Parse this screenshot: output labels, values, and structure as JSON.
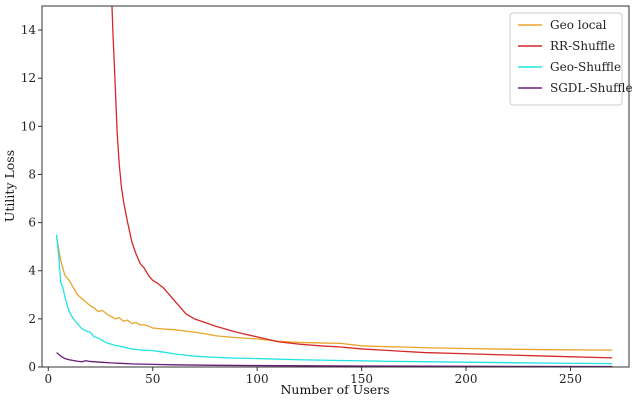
{
  "chart_data": {
    "type": "line",
    "title": "",
    "xlabel": "Number of Users",
    "ylabel": "Utility Loss",
    "xlim": [
      -3,
      278
    ],
    "ylim": [
      0,
      15
    ],
    "xticks": [
      0,
      50,
      100,
      150,
      200,
      250
    ],
    "yticks": [
      0,
      2,
      4,
      6,
      8,
      10,
      12,
      14
    ],
    "grid": false,
    "legend_position": "top-right",
    "series": [
      {
        "name": "Geo local",
        "color": "#e8a42a",
        "points": [
          [
            4,
            5.4
          ],
          [
            6,
            4.4
          ],
          [
            8,
            3.8
          ],
          [
            10,
            3.6
          ],
          [
            12,
            3.3
          ],
          [
            14,
            3.0
          ],
          [
            16,
            2.85
          ],
          [
            18,
            2.7
          ],
          [
            20,
            2.55
          ],
          [
            22,
            2.45
          ],
          [
            24,
            2.3
          ],
          [
            26,
            2.35
          ],
          [
            28,
            2.2
          ],
          [
            30,
            2.1
          ],
          [
            32,
            2.0
          ],
          [
            34,
            2.05
          ],
          [
            36,
            1.9
          ],
          [
            38,
            1.95
          ],
          [
            40,
            1.8
          ],
          [
            42,
            1.85
          ],
          [
            44,
            1.75
          ],
          [
            46,
            1.75
          ],
          [
            48,
            1.7
          ],
          [
            50,
            1.62
          ],
          [
            55,
            1.58
          ],
          [
            60,
            1.55
          ],
          [
            65,
            1.5
          ],
          [
            70,
            1.45
          ],
          [
            75,
            1.38
          ],
          [
            80,
            1.3
          ],
          [
            90,
            1.22
          ],
          [
            100,
            1.17
          ],
          [
            110,
            1.07
          ],
          [
            120,
            1.02
          ],
          [
            130,
            1.0
          ],
          [
            140,
            0.98
          ],
          [
            150,
            0.88
          ],
          [
            160,
            0.85
          ],
          [
            170,
            0.83
          ],
          [
            180,
            0.8
          ],
          [
            200,
            0.77
          ],
          [
            220,
            0.74
          ],
          [
            240,
            0.72
          ],
          [
            270,
            0.7
          ]
        ]
      },
      {
        "name": "RR-Shuffle",
        "color": "#d62728",
        "points": [
          [
            30.5,
            15
          ],
          [
            31,
            13.8
          ],
          [
            32,
            11.8
          ],
          [
            33,
            9.7
          ],
          [
            34,
            8.4
          ],
          [
            35,
            7.5
          ],
          [
            36,
            6.9
          ],
          [
            38,
            6.0
          ],
          [
            40,
            5.2
          ],
          [
            42,
            4.7
          ],
          [
            44,
            4.3
          ],
          [
            46,
            4.1
          ],
          [
            48,
            3.8
          ],
          [
            50,
            3.6
          ],
          [
            52,
            3.5
          ],
          [
            55,
            3.3
          ],
          [
            58,
            3.0
          ],
          [
            62,
            2.6
          ],
          [
            66,
            2.2
          ],
          [
            70,
            2.0
          ],
          [
            80,
            1.7
          ],
          [
            90,
            1.45
          ],
          [
            100,
            1.25
          ],
          [
            110,
            1.05
          ],
          [
            120,
            0.95
          ],
          [
            130,
            0.88
          ],
          [
            140,
            0.83
          ],
          [
            150,
            0.75
          ],
          [
            160,
            0.7
          ],
          [
            170,
            0.65
          ],
          [
            180,
            0.6
          ],
          [
            200,
            0.55
          ],
          [
            220,
            0.5
          ],
          [
            240,
            0.45
          ],
          [
            270,
            0.38
          ]
        ]
      },
      {
        "name": "Geo-Shuffle",
        "color": "#22e3e3",
        "points": [
          [
            4,
            5.5
          ],
          [
            5,
            4.6
          ],
          [
            6,
            3.5
          ],
          [
            7,
            3.3
          ],
          [
            8,
            2.9
          ],
          [
            9,
            2.6
          ],
          [
            10,
            2.3
          ],
          [
            12,
            2.0
          ],
          [
            14,
            1.8
          ],
          [
            16,
            1.6
          ],
          [
            18,
            1.5
          ],
          [
            20,
            1.45
          ],
          [
            22,
            1.25
          ],
          [
            24,
            1.2
          ],
          [
            26,
            1.1
          ],
          [
            28,
            1.0
          ],
          [
            30,
            0.95
          ],
          [
            32,
            0.9
          ],
          [
            35,
            0.85
          ],
          [
            40,
            0.75
          ],
          [
            45,
            0.7
          ],
          [
            50,
            0.68
          ],
          [
            55,
            0.62
          ],
          [
            60,
            0.55
          ],
          [
            65,
            0.5
          ],
          [
            70,
            0.45
          ],
          [
            80,
            0.4
          ],
          [
            90,
            0.37
          ],
          [
            100,
            0.35
          ],
          [
            120,
            0.3
          ],
          [
            140,
            0.27
          ],
          [
            160,
            0.24
          ],
          [
            180,
            0.22
          ],
          [
            200,
            0.2
          ],
          [
            220,
            0.18
          ],
          [
            240,
            0.16
          ],
          [
            270,
            0.14
          ]
        ]
      },
      {
        "name": "SGDL-Shuffle",
        "color": "#6a1b7a",
        "points": [
          [
            4,
            0.6
          ],
          [
            6,
            0.45
          ],
          [
            8,
            0.35
          ],
          [
            10,
            0.3
          ],
          [
            12,
            0.27
          ],
          [
            14,
            0.24
          ],
          [
            16,
            0.22
          ],
          [
            18,
            0.26
          ],
          [
            20,
            0.23
          ],
          [
            25,
            0.2
          ],
          [
            30,
            0.17
          ],
          [
            40,
            0.13
          ],
          [
            50,
            0.11
          ],
          [
            60,
            0.09
          ],
          [
            80,
            0.07
          ],
          [
            100,
            0.06
          ],
          [
            150,
            0.04
          ],
          [
            200,
            0.03
          ],
          [
            270,
            0.02
          ]
        ]
      }
    ]
  }
}
